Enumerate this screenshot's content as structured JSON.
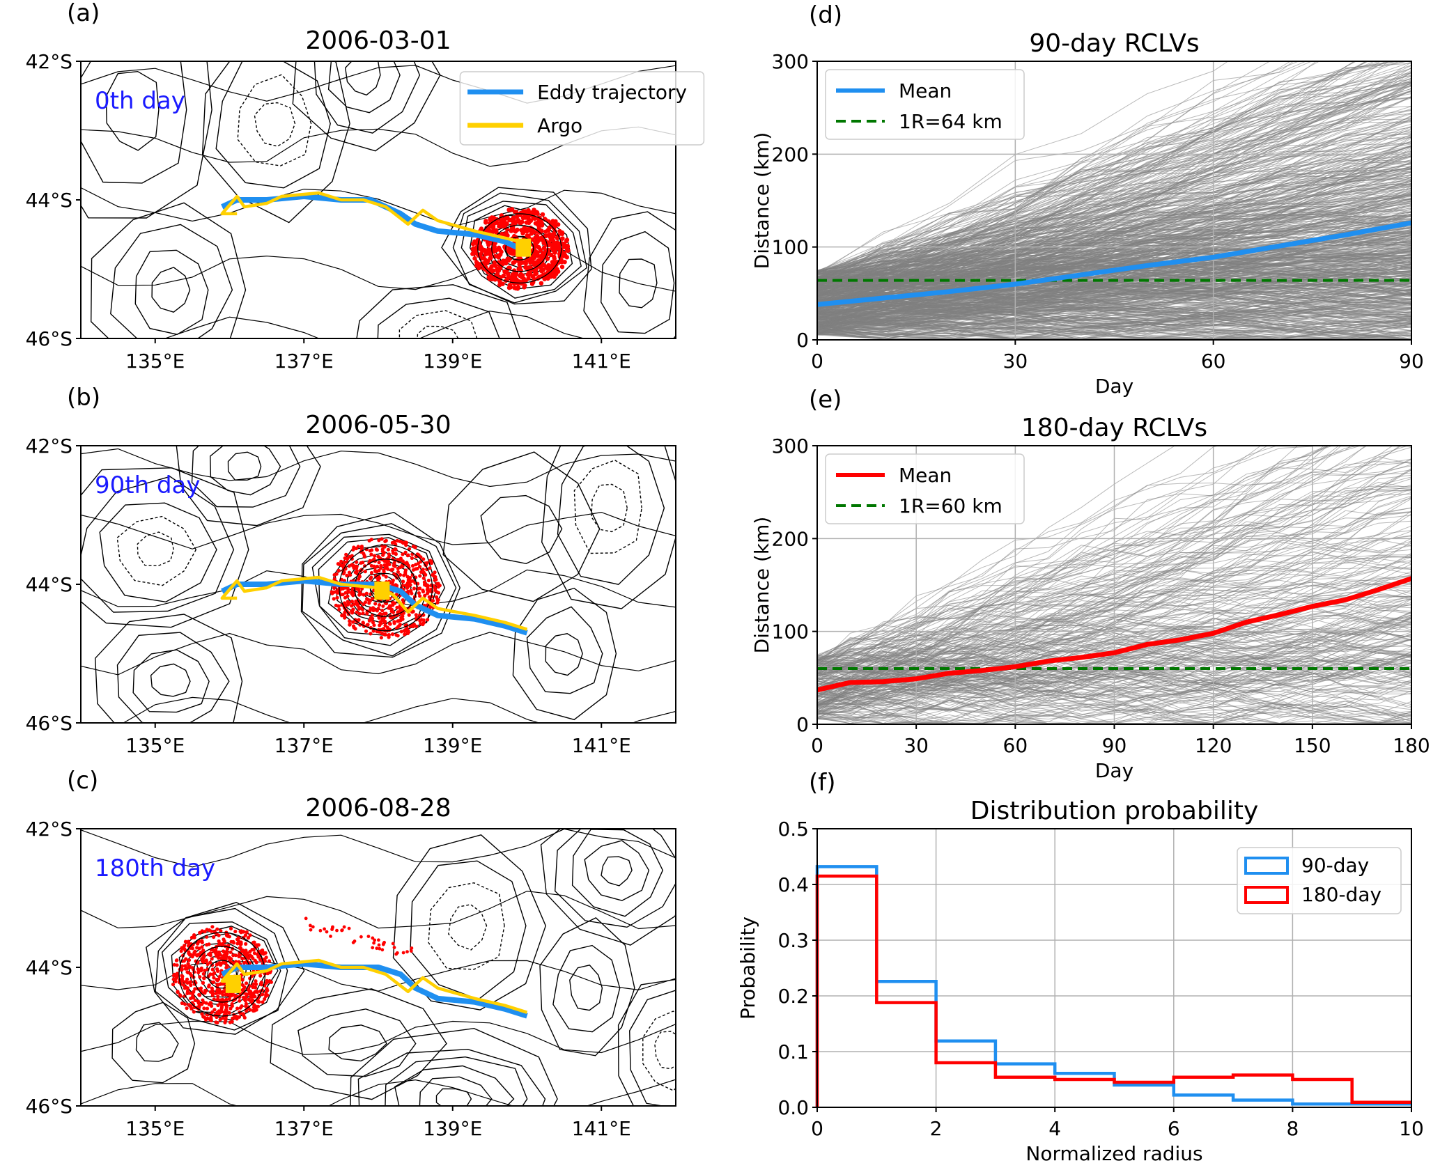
{
  "colors": {
    "trajectory": "#1f8ff0",
    "argo": "#ffd000",
    "particles": "#ff0000",
    "mean_90": "#1f8ff0",
    "mean_180": "#ff0000",
    "radius_line": "#007700",
    "spaghetti": "#808080",
    "day_label": "#1a1aff",
    "hist_90": "#1f8ff0",
    "hist_180": "#ff0000",
    "grid": "#b0b0b0"
  },
  "chart_data": [
    {
      "panel": "(a)",
      "type": "map",
      "title": "2006-03-01",
      "annotation": "0th day",
      "xticks": [
        "135°E",
        "137°E",
        "139°E",
        "141°E"
      ],
      "yticks": [
        "42°S",
        "44°S",
        "46°S"
      ],
      "xlim": [
        134,
        142
      ],
      "ylim": [
        -46,
        -42
      ],
      "legend": [
        "Eddy trajectory",
        "Argo"
      ],
      "legend_position": "top-right",
      "eddy_center": [
        139.9,
        -44.7
      ],
      "eddy_trajectory": [
        [
          135.9,
          -44.1
        ],
        [
          136.1,
          -44.0
        ],
        [
          136.5,
          -44.0
        ],
        [
          137.0,
          -43.95
        ],
        [
          137.5,
          -44.0
        ],
        [
          137.9,
          -44.0
        ],
        [
          138.3,
          -44.2
        ],
        [
          138.5,
          -44.35
        ],
        [
          138.8,
          -44.45
        ],
        [
          139.3,
          -44.5
        ],
        [
          139.7,
          -44.6
        ],
        [
          139.9,
          -44.7
        ]
      ],
      "argo_track": [
        [
          136.1,
          -44.2
        ],
        [
          135.9,
          -44.2
        ],
        [
          136.1,
          -43.95
        ],
        [
          136.2,
          -44.1
        ],
        [
          136.5,
          -44.05
        ],
        [
          136.7,
          -43.95
        ],
        [
          137.2,
          -43.9
        ],
        [
          137.5,
          -44.0
        ],
        [
          137.8,
          -44.0
        ],
        [
          138.1,
          -44.1
        ],
        [
          138.4,
          -44.35
        ],
        [
          138.6,
          -44.15
        ],
        [
          138.8,
          -44.3
        ],
        [
          139.3,
          -44.45
        ],
        [
          139.7,
          -44.55
        ],
        [
          139.9,
          -44.6
        ]
      ],
      "argo_position": [
        139.95,
        -44.7
      ]
    },
    {
      "panel": "(b)",
      "type": "map",
      "title": "2006-05-30",
      "annotation": "90th day",
      "xticks": [
        "135°E",
        "137°E",
        "139°E",
        "141°E"
      ],
      "yticks": [
        "42°S",
        "44°S",
        "46°S"
      ],
      "xlim": [
        134,
        142
      ],
      "ylim": [
        -46,
        -42
      ],
      "eddy_center": [
        138.1,
        -44.05
      ],
      "eddy_trajectory": [
        [
          135.9,
          -44.1
        ],
        [
          136.1,
          -44.0
        ],
        [
          136.5,
          -44.0
        ],
        [
          137.0,
          -43.95
        ],
        [
          137.5,
          -44.0
        ],
        [
          138.0,
          -44.0
        ],
        [
          138.3,
          -44.1
        ],
        [
          138.5,
          -44.3
        ],
        [
          138.8,
          -44.45
        ],
        [
          139.3,
          -44.5
        ],
        [
          139.7,
          -44.6
        ],
        [
          140.0,
          -44.7
        ]
      ],
      "argo_track": [
        [
          136.1,
          -44.2
        ],
        [
          135.9,
          -44.2
        ],
        [
          136.1,
          -43.95
        ],
        [
          136.2,
          -44.1
        ],
        [
          136.5,
          -44.05
        ],
        [
          136.7,
          -43.95
        ],
        [
          137.2,
          -43.9
        ],
        [
          137.5,
          -44.0
        ],
        [
          138.0,
          -44.05
        ],
        [
          138.2,
          -44.15
        ],
        [
          138.4,
          -44.4
        ],
        [
          138.6,
          -44.2
        ],
        [
          138.8,
          -44.35
        ],
        [
          139.3,
          -44.45
        ],
        [
          139.7,
          -44.55
        ],
        [
          140.0,
          -44.65
        ]
      ],
      "argo_position": [
        138.05,
        -44.1
      ]
    },
    {
      "panel": "(c)",
      "type": "map",
      "title": "2006-08-28",
      "annotation": "180th day",
      "xticks": [
        "135°E",
        "137°E",
        "139°E",
        "141°E"
      ],
      "yticks": [
        "42°S",
        "44°S",
        "46°S"
      ],
      "xlim": [
        134,
        142
      ],
      "ylim": [
        -46,
        -42
      ],
      "eddy_center": [
        135.9,
        -44.1
      ],
      "eddy_trajectory": [
        [
          135.9,
          -44.1
        ],
        [
          136.1,
          -44.0
        ],
        [
          136.5,
          -44.0
        ],
        [
          137.0,
          -43.95
        ],
        [
          137.5,
          -44.0
        ],
        [
          138.0,
          -44.0
        ],
        [
          138.3,
          -44.1
        ],
        [
          138.5,
          -44.3
        ],
        [
          138.8,
          -44.45
        ],
        [
          139.3,
          -44.5
        ],
        [
          139.7,
          -44.6
        ],
        [
          140.0,
          -44.7
        ]
      ],
      "argo_track": [
        [
          136.1,
          -44.2
        ],
        [
          135.9,
          -44.2
        ],
        [
          136.1,
          -43.95
        ],
        [
          136.2,
          -44.1
        ],
        [
          136.5,
          -44.05
        ],
        [
          136.7,
          -43.95
        ],
        [
          137.2,
          -43.9
        ],
        [
          137.5,
          -44.0
        ],
        [
          137.8,
          -44.0
        ],
        [
          138.1,
          -44.1
        ],
        [
          138.4,
          -44.35
        ],
        [
          138.6,
          -44.15
        ],
        [
          138.8,
          -44.3
        ],
        [
          139.3,
          -44.45
        ],
        [
          139.7,
          -44.55
        ],
        [
          140.0,
          -44.65
        ]
      ],
      "argo_position": [
        136.05,
        -44.25
      ]
    },
    {
      "panel": "(d)",
      "type": "line",
      "title": "90-day RCLVs",
      "xlabel": "Day",
      "ylabel": "Distance (km)",
      "xlim": [
        0,
        90
      ],
      "ylim": [
        0,
        300
      ],
      "xticks": [
        0,
        30,
        60,
        90
      ],
      "yticks": [
        0,
        100,
        200,
        300
      ],
      "grid": true,
      "legend": [
        "Mean",
        "1R=64 km"
      ],
      "legend_position": "top-left",
      "series": [
        {
          "name": "Mean",
          "x": [
            0,
            10,
            20,
            30,
            40,
            50,
            60,
            70,
            80,
            90
          ],
          "values": [
            38,
            45,
            52,
            60,
            70,
            80,
            89,
            101,
            113,
            126
          ]
        },
        {
          "name": "1R=64 km",
          "x": [
            0,
            90
          ],
          "values": [
            64,
            64
          ],
          "style": "dashed"
        }
      ]
    },
    {
      "panel": "(e)",
      "type": "line",
      "title": "180-day RCLVs",
      "xlabel": "Day",
      "ylabel": "Distance (km)",
      "xlim": [
        0,
        180
      ],
      "ylim": [
        0,
        300
      ],
      "xticks": [
        0,
        30,
        60,
        90,
        120,
        150,
        180
      ],
      "yticks": [
        0,
        100,
        200,
        300
      ],
      "grid": true,
      "legend": [
        "Mean",
        "1R=60 km"
      ],
      "legend_position": "top-left",
      "series": [
        {
          "name": "Mean",
          "x": [
            0,
            10,
            20,
            30,
            40,
            50,
            60,
            70,
            80,
            90,
            100,
            110,
            120,
            130,
            140,
            150,
            160,
            170,
            180
          ],
          "values": [
            37,
            45,
            46,
            49,
            55,
            58,
            62,
            68,
            72,
            77,
            86,
            91,
            98,
            110,
            118,
            127,
            134,
            145,
            157
          ]
        },
        {
          "name": "1R=60 km",
          "x": [
            0,
            180
          ],
          "values": [
            60,
            60
          ],
          "style": "dashed"
        }
      ]
    },
    {
      "panel": "(f)",
      "type": "bar",
      "histtype": "step",
      "title": "Distribution probability",
      "xlabel": "Normalized radius",
      "ylabel": "Probability",
      "xlim": [
        0,
        10
      ],
      "ylim": [
        0,
        0.5
      ],
      "xticks": [
        0,
        2,
        4,
        6,
        8,
        10
      ],
      "yticks": [
        "0.0",
        "0.1",
        "0.2",
        "0.3",
        "0.4",
        "0.5"
      ],
      "grid": true,
      "legend": [
        "90-day",
        "180-day"
      ],
      "legend_position": "top-right",
      "bin_edges": [
        0,
        1,
        2,
        3,
        4,
        5,
        6,
        7,
        8,
        9,
        10
      ],
      "series": [
        {
          "name": "90-day",
          "values": [
            0.432,
            0.226,
            0.119,
            0.078,
            0.061,
            0.04,
            0.022,
            0.013,
            0.006,
            0.006
          ]
        },
        {
          "name": "180-day",
          "values": [
            0.415,
            0.188,
            0.08,
            0.054,
            0.05,
            0.045,
            0.054,
            0.058,
            0.05,
            0.009
          ]
        }
      ]
    }
  ]
}
